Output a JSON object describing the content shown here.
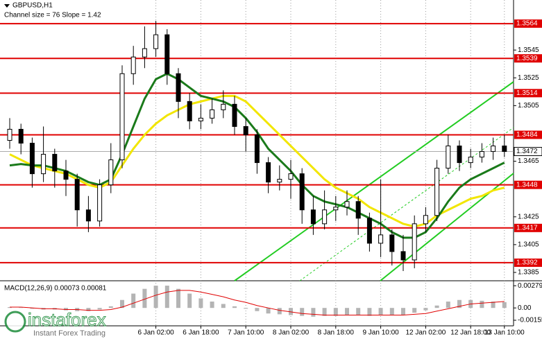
{
  "chart_data": [
    {
      "type": "candlestick",
      "title": "GBPUSD,H1",
      "subtitle": "Channel size = 76 Slope = 1.42",
      "categories": [
        null,
        null,
        null,
        null,
        null,
        null,
        null,
        null,
        null,
        null,
        null,
        null,
        null,
        "6 Jan 02:00",
        null,
        null,
        null,
        "6 Jan 18:00",
        null,
        null,
        null,
        "7 Jan 10:00",
        null,
        null,
        null,
        "8 Jan 02:00",
        null,
        null,
        null,
        "8 Jan 18:00",
        null,
        null,
        null,
        "9 Jan 10:00",
        null,
        null,
        null,
        "12 Jan 02:00",
        null,
        null,
        null,
        "12 Jan 18:00",
        null,
        null,
        "13 Jan 10:00"
      ],
      "open": [
        1.348,
        1.3488,
        1.3478,
        1.3456,
        1.347,
        1.3458,
        1.3452,
        1.343,
        1.3422,
        1.3448,
        1.3466,
        1.3528,
        1.354,
        1.3546,
        1.3556,
        1.3528,
        1.3508,
        1.3494,
        1.3496,
        1.3502,
        1.3506,
        1.349,
        1.3484,
        1.3464,
        1.345,
        1.3452,
        1.3456,
        1.343,
        1.342,
        1.343,
        1.3432,
        1.3436,
        1.3424,
        1.3406,
        1.3412,
        1.34,
        1.3394,
        1.342,
        1.3426,
        1.346,
        1.3476,
        1.3464,
        1.3468,
        1.3472,
        1.3476
      ],
      "high": [
        1.3496,
        1.3492,
        1.3482,
        1.349,
        1.3474,
        1.3466,
        1.3456,
        1.344,
        1.3452,
        1.3478,
        1.3534,
        1.3548,
        1.3562,
        1.3566,
        1.356,
        1.3532,
        1.3514,
        1.3506,
        1.351,
        1.3516,
        1.3512,
        1.3496,
        1.3488,
        1.3468,
        1.3462,
        1.3466,
        1.346,
        1.344,
        1.3444,
        1.344,
        1.3444,
        1.344,
        1.3428,
        1.3452,
        1.3416,
        1.3412,
        1.3426,
        1.3432,
        1.3466,
        1.3484,
        1.348,
        1.3474,
        1.3478,
        1.3482,
        1.3484
      ],
      "low": [
        1.3474,
        1.347,
        1.3446,
        1.345,
        1.3446,
        1.344,
        1.3418,
        1.3414,
        1.3418,
        1.3442,
        1.346,
        1.352,
        1.3532,
        1.354,
        1.352,
        1.3496,
        1.3488,
        1.3488,
        1.3492,
        1.3496,
        1.3484,
        1.3472,
        1.3456,
        1.3442,
        1.3444,
        1.3438,
        1.342,
        1.3412,
        1.3416,
        1.3422,
        1.3426,
        1.3412,
        1.34,
        1.3396,
        1.339,
        1.3386,
        1.3388,
        1.3414,
        1.3422,
        1.3456,
        1.3458,
        1.346,
        1.3464,
        1.3466,
        1.3468
      ],
      "close": [
        1.3488,
        1.3478,
        1.3456,
        1.347,
        1.3458,
        1.3452,
        1.343,
        1.3422,
        1.3448,
        1.3466,
        1.3528,
        1.354,
        1.3546,
        1.3556,
        1.3528,
        1.3508,
        1.3494,
        1.3496,
        1.3502,
        1.3506,
        1.349,
        1.3484,
        1.3464,
        1.345,
        1.3452,
        1.3456,
        1.343,
        1.342,
        1.343,
        1.3432,
        1.3436,
        1.3424,
        1.3406,
        1.3412,
        1.34,
        1.3394,
        1.342,
        1.3426,
        1.346,
        1.3476,
        1.3464,
        1.3468,
        1.3472,
        1.3476,
        1.3472
      ],
      "overlays": [
        {
          "color": "#f2e600",
          "values": [
            1.347,
            1.3466,
            1.3462,
            1.346,
            1.3458,
            1.3456,
            1.3452,
            1.3448,
            1.3446,
            1.345,
            1.3462,
            1.3474,
            1.3484,
            1.3492,
            1.3498,
            1.3502,
            1.3506,
            1.3508,
            1.351,
            1.3512,
            1.3512,
            1.3508,
            1.35,
            1.3492,
            1.3484,
            1.3476,
            1.3468,
            1.346,
            1.3452,
            1.3446,
            1.3442,
            1.3438,
            1.3432,
            1.3428,
            1.3424,
            1.342,
            1.3418,
            1.342,
            1.3426,
            1.343,
            1.3434,
            1.3438,
            1.344,
            1.3444,
            1.3446
          ]
        },
        {
          "color": "#1a7a1a",
          "values": [
            1.3462,
            1.3463,
            1.3462,
            1.3462,
            1.346,
            1.3458,
            1.3454,
            1.345,
            1.3448,
            1.3452,
            1.347,
            1.349,
            1.351,
            1.3524,
            1.3528,
            1.3524,
            1.3518,
            1.3512,
            1.351,
            1.3508,
            1.3504,
            1.3496,
            1.3486,
            1.3474,
            1.3466,
            1.3458,
            1.3448,
            1.344,
            1.3436,
            1.3434,
            1.3432,
            1.3428,
            1.3424,
            1.342,
            1.3414,
            1.341,
            1.341,
            1.3414,
            1.3424,
            1.3436,
            1.3446,
            1.3452,
            1.3456,
            1.346,
            1.3464
          ]
        }
      ],
      "levels": [
        1.3564,
        1.3539,
        1.3514,
        1.3484,
        1.3448,
        1.3417,
        1.3392
      ],
      "level_color": "#e00000",
      "last": 1.3472,
      "ylim": [
        1.3379,
        1.3581
      ],
      "yticks": [
        1.3545,
        1.3525,
        1.3505,
        1.3465,
        1.3425,
        1.3405,
        1.3385
      ]
    },
    {
      "type": "macd",
      "title": "MACD(12,26,9) 0.00073 0.00081",
      "values": [
        0.0001,
        5e-05,
        -0.0001,
        -0.0002,
        -0.0002,
        -0.0003,
        -0.0004,
        -0.0004,
        -0.0002,
        0.0002,
        0.001,
        0.0018,
        0.0024,
        0.0028,
        0.0028,
        0.0024,
        0.0018,
        0.0012,
        0.0008,
        0.0005,
        0.0002,
        -0.0001,
        -0.0004,
        -0.0007,
        -0.0008,
        -0.0009,
        -0.001,
        -0.0011,
        -0.001,
        -0.001,
        -0.0009,
        -0.0009,
        -0.001,
        -0.0009,
        -0.0009,
        -0.0009,
        -0.0006,
        -0.0003,
        0.0003,
        0.0008,
        0.001,
        0.001,
        0.0009,
        0.0008,
        0.00073
      ],
      "signal": [
        0.0001,
        0.0001,
        0.0,
        -0.0001,
        -0.0001,
        -0.0002,
        -0.0002,
        -0.0003,
        -0.0003,
        -0.0002,
        0.0001,
        0.0006,
        0.0011,
        0.0016,
        0.002,
        0.0022,
        0.0022,
        0.002,
        0.0017,
        0.0014,
        0.001,
        0.0007,
        0.0003,
        0.0,
        -0.0003,
        -0.0005,
        -0.0007,
        -0.0008,
        -0.0009,
        -0.0009,
        -0.0009,
        -0.0009,
        -0.0009,
        -0.0009,
        -0.0009,
        -0.0009,
        -0.0008,
        -0.0007,
        -0.0004,
        -0.0001,
        0.0002,
        0.0005,
        0.0006,
        0.0007,
        0.00081
      ],
      "bar_color": "#b4b4b4",
      "signal_color": "#e00000",
      "ylim": [
        -0.00225,
        0.00324
      ],
      "yticks": [
        0.00279,
        {
          "value": 0,
          "label": "0.00"
        },
        -0.00155
      ]
    }
  ],
  "watermark": {
    "brand": "instaforex",
    "tagline": "Instant Forex Trading"
  }
}
